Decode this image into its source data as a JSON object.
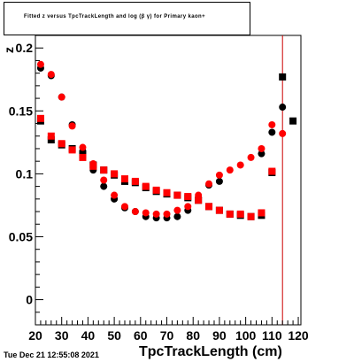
{
  "header": {
    "title": "Fitted  z  versus TpcTrackLength and log  (β γ) for Primary kaon+",
    "subscript_z": "π",
    "subscript_log": "10"
  },
  "footer": {
    "timestamp": "Tue Dec 21 12:55:08 2021"
  },
  "colors": {
    "series_black": "#000000",
    "series_red": "#ff0000",
    "vertical_line": "#cc0000",
    "frame": "#000000"
  },
  "chart_data": {
    "type": "scatter",
    "title": "Fitted  z  versus TpcTrackLength and log  (β γ) for Primary kaon+",
    "xlabel": "TpcTrackLength (cm)",
    "ylabel": "z",
    "xlim": [
      20,
      121
    ],
    "ylim": [
      -0.02,
      0.21
    ],
    "x_ticks": [
      20,
      30,
      40,
      50,
      60,
      70,
      80,
      90,
      100,
      110,
      120
    ],
    "x_tick_labels": [
      "20",
      "30",
      "40",
      "50",
      "60",
      "70",
      "80",
      "90",
      "100",
      "110",
      "120"
    ],
    "y_ticks": [
      0,
      0.05,
      0.1,
      0.15,
      0.2
    ],
    "y_tick_labels": [
      "0",
      "0.05",
      "0.1",
      "0.15",
      "0.2"
    ],
    "vertical_line_x": 114,
    "series": [
      {
        "color": "#000000",
        "points": [
          {
            "x": 22,
            "y": 0.184,
            "m": "circle"
          },
          {
            "x": 26,
            "y": 0.178,
            "m": "circle"
          },
          {
            "x": 30,
            "y": 0.161,
            "m": "circle"
          },
          {
            "x": 34,
            "y": 0.139,
            "m": "circle"
          },
          {
            "x": 38,
            "y": 0.118,
            "m": "circle"
          },
          {
            "x": 42,
            "y": 0.103,
            "m": "circle"
          },
          {
            "x": 46,
            "y": 0.09,
            "m": "circle"
          },
          {
            "x": 50,
            "y": 0.08,
            "m": "circle"
          },
          {
            "x": 54,
            "y": 0.073,
            "m": "circle"
          },
          {
            "x": 58,
            "y": 0.07,
            "m": "circle"
          },
          {
            "x": 62,
            "y": 0.066,
            "m": "circle"
          },
          {
            "x": 66,
            "y": 0.065,
            "m": "circle"
          },
          {
            "x": 70,
            "y": 0.065,
            "m": "circle"
          },
          {
            "x": 74,
            "y": 0.066,
            "m": "circle"
          },
          {
            "x": 78,
            "y": 0.071,
            "m": "circle"
          },
          {
            "x": 82,
            "y": 0.081,
            "m": "circle"
          },
          {
            "x": 86,
            "y": 0.091,
            "m": "circle"
          },
          {
            "x": 90,
            "y": 0.094,
            "m": "circle"
          },
          {
            "x": 106,
            "y": 0.116,
            "m": "circle"
          },
          {
            "x": 110,
            "y": 0.133,
            "m": "circle"
          },
          {
            "x": 114,
            "y": 0.153,
            "m": "circle"
          },
          {
            "x": 22,
            "y": 0.142,
            "m": "square"
          },
          {
            "x": 26,
            "y": 0.127,
            "m": "square"
          },
          {
            "x": 30,
            "y": 0.123,
            "m": "square"
          },
          {
            "x": 34,
            "y": 0.12,
            "m": "square"
          },
          {
            "x": 38,
            "y": 0.115,
            "m": "square"
          },
          {
            "x": 42,
            "y": 0.107,
            "m": "square"
          },
          {
            "x": 46,
            "y": 0.103,
            "m": "square"
          },
          {
            "x": 50,
            "y": 0.099,
            "m": "square"
          },
          {
            "x": 54,
            "y": 0.094,
            "m": "square"
          },
          {
            "x": 58,
            "y": 0.093,
            "m": "square"
          },
          {
            "x": 62,
            "y": 0.089,
            "m": "square"
          },
          {
            "x": 66,
            "y": 0.086,
            "m": "square"
          },
          {
            "x": 70,
            "y": 0.084,
            "m": "square"
          },
          {
            "x": 74,
            "y": 0.083,
            "m": "square"
          },
          {
            "x": 78,
            "y": 0.081,
            "m": "square"
          },
          {
            "x": 82,
            "y": 0.079,
            "m": "square"
          },
          {
            "x": 86,
            "y": 0.074,
            "m": "square"
          },
          {
            "x": 90,
            "y": 0.071,
            "m": "square"
          },
          {
            "x": 94,
            "y": 0.068,
            "m": "square"
          },
          {
            "x": 98,
            "y": 0.067,
            "m": "square"
          },
          {
            "x": 102,
            "y": 0.066,
            "m": "square"
          },
          {
            "x": 106,
            "y": 0.067,
            "m": "square"
          },
          {
            "x": 110,
            "y": 0.101,
            "m": "square"
          },
          {
            "x": 114,
            "y": 0.177,
            "m": "square"
          },
          {
            "x": 118,
            "y": 0.142,
            "m": "square"
          }
        ]
      },
      {
        "color": "#ff0000",
        "points": [
          {
            "x": 22,
            "y": 0.187,
            "m": "circle"
          },
          {
            "x": 26,
            "y": 0.179,
            "m": "circle"
          },
          {
            "x": 30,
            "y": 0.161,
            "m": "circle"
          },
          {
            "x": 34,
            "y": 0.138,
            "m": "circle"
          },
          {
            "x": 38,
            "y": 0.121,
            "m": "circle"
          },
          {
            "x": 42,
            "y": 0.108,
            "m": "circle"
          },
          {
            "x": 46,
            "y": 0.095,
            "m": "circle"
          },
          {
            "x": 50,
            "y": 0.083,
            "m": "circle"
          },
          {
            "x": 54,
            "y": 0.074,
            "m": "circle"
          },
          {
            "x": 58,
            "y": 0.07,
            "m": "circle"
          },
          {
            "x": 62,
            "y": 0.069,
            "m": "circle"
          },
          {
            "x": 66,
            "y": 0.068,
            "m": "circle"
          },
          {
            "x": 70,
            "y": 0.068,
            "m": "circle"
          },
          {
            "x": 74,
            "y": 0.071,
            "m": "circle"
          },
          {
            "x": 78,
            "y": 0.074,
            "m": "circle"
          },
          {
            "x": 82,
            "y": 0.083,
            "m": "circle"
          },
          {
            "x": 86,
            "y": 0.092,
            "m": "circle"
          },
          {
            "x": 90,
            "y": 0.099,
            "m": "circle"
          },
          {
            "x": 94,
            "y": 0.103,
            "m": "circle"
          },
          {
            "x": 98,
            "y": 0.107,
            "m": "circle"
          },
          {
            "x": 102,
            "y": 0.113,
            "m": "circle"
          },
          {
            "x": 106,
            "y": 0.12,
            "m": "circle"
          },
          {
            "x": 110,
            "y": 0.139,
            "m": "circle"
          },
          {
            "x": 114,
            "y": 0.132,
            "m": "circle"
          },
          {
            "x": 22,
            "y": 0.144,
            "m": "square"
          },
          {
            "x": 26,
            "y": 0.13,
            "m": "square"
          },
          {
            "x": 30,
            "y": 0.124,
            "m": "square"
          },
          {
            "x": 34,
            "y": 0.119,
            "m": "square"
          },
          {
            "x": 38,
            "y": 0.113,
            "m": "square"
          },
          {
            "x": 42,
            "y": 0.106,
            "m": "square"
          },
          {
            "x": 46,
            "y": 0.103,
            "m": "square"
          },
          {
            "x": 50,
            "y": 0.1,
            "m": "square"
          },
          {
            "x": 54,
            "y": 0.096,
            "m": "square"
          },
          {
            "x": 58,
            "y": 0.094,
            "m": "square"
          },
          {
            "x": 62,
            "y": 0.09,
            "m": "square"
          },
          {
            "x": 66,
            "y": 0.087,
            "m": "square"
          },
          {
            "x": 70,
            "y": 0.085,
            "m": "square"
          },
          {
            "x": 74,
            "y": 0.083,
            "m": "square"
          },
          {
            "x": 78,
            "y": 0.082,
            "m": "square"
          },
          {
            "x": 82,
            "y": 0.079,
            "m": "square"
          },
          {
            "x": 86,
            "y": 0.074,
            "m": "square"
          },
          {
            "x": 90,
            "y": 0.071,
            "m": "square"
          },
          {
            "x": 94,
            "y": 0.068,
            "m": "square"
          },
          {
            "x": 98,
            "y": 0.068,
            "m": "square"
          },
          {
            "x": 102,
            "y": 0.066,
            "m": "square"
          },
          {
            "x": 106,
            "y": 0.069,
            "m": "square"
          },
          {
            "x": 110,
            "y": 0.102,
            "m": "square"
          }
        ]
      }
    ]
  }
}
